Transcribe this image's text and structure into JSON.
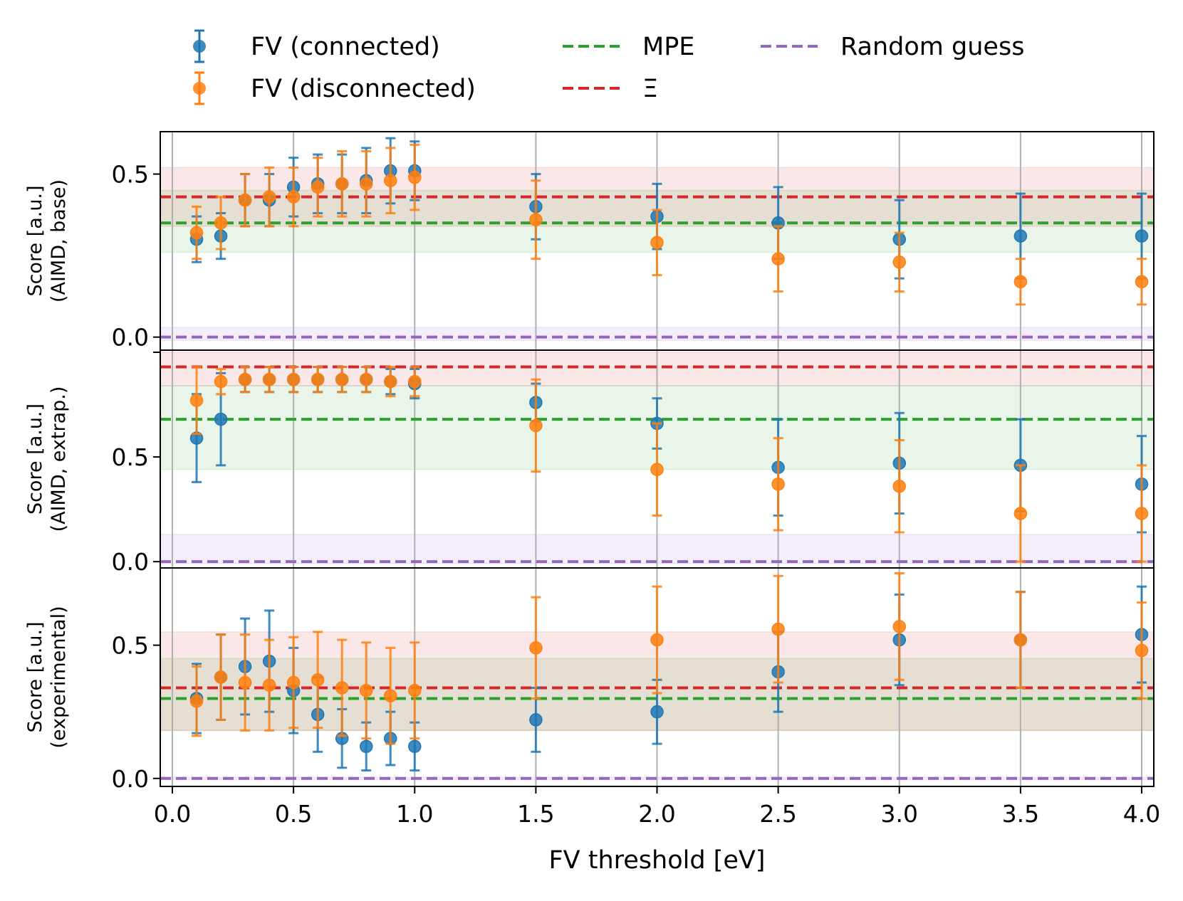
{
  "chart_data": {
    "type": "scatter",
    "xlabel": "FV threshold [eV]",
    "x_ticks": [
      "0.0",
      "0.5",
      "1.0",
      "1.5",
      "2.0",
      "2.5",
      "3.0",
      "3.5",
      "4.0"
    ],
    "xlim": [
      -0.05,
      4.05
    ],
    "x": [
      0.1,
      0.2,
      0.3,
      0.4,
      0.5,
      0.6,
      0.7,
      0.8,
      0.9,
      1.0,
      1.5,
      2.0,
      2.5,
      3.0,
      3.5,
      4.0
    ],
    "grid": "vertical",
    "legend": {
      "placement": "top, outside",
      "entries": [
        {
          "label": "FV (connected)",
          "style": "errorbar-marker",
          "color": "#1f77b4"
        },
        {
          "label": "FV (disconnected)",
          "style": "errorbar-marker",
          "color": "#ff7f0e"
        },
        {
          "label": "MPE",
          "style": "dashed-line",
          "color": "#2ca02c"
        },
        {
          "label": "Ξ",
          "style": "dashed-line",
          "color": "#d62728"
        },
        {
          "label": "Random guess",
          "style": "dashed-line",
          "color": "#9467bd"
        }
      ]
    },
    "panels": [
      {
        "ylabel_line1": "Score [a.u.]",
        "ylabel_line2": "(AIMD, base)",
        "ylim": [
          -0.04,
          0.63
        ],
        "y_ticks": [
          "0.5",
          "0.0"
        ],
        "y_tick_values": [
          0.5,
          0.0
        ],
        "series": [
          {
            "name": "FV (connected)",
            "color": "#1f77b4",
            "y": [
              0.3,
              0.31,
              0.42,
              0.42,
              0.46,
              0.47,
              0.47,
              0.48,
              0.51,
              0.51,
              0.4,
              0.37,
              0.35,
              0.3,
              0.31,
              0.31
            ],
            "err": [
              0.07,
              0.07,
              0.08,
              0.08,
              0.09,
              0.09,
              0.09,
              0.1,
              0.1,
              0.09,
              0.1,
              0.1,
              0.11,
              0.12,
              0.13,
              0.13
            ]
          },
          {
            "name": "FV (disconnected)",
            "color": "#ff7f0e",
            "y": [
              0.32,
              0.35,
              0.42,
              0.43,
              0.43,
              0.46,
              0.47,
              0.47,
              0.48,
              0.49,
              0.36,
              0.29,
              0.24,
              0.23,
              0.17,
              0.17
            ],
            "err": [
              0.08,
              0.08,
              0.08,
              0.09,
              0.09,
              0.09,
              0.1,
              0.1,
              0.1,
              0.1,
              0.12,
              0.1,
              0.1,
              0.09,
              0.07,
              0.07
            ]
          }
        ],
        "references": [
          {
            "name": "MPE",
            "color": "#2ca02c",
            "value": 0.35,
            "band": [
              0.26,
              0.45
            ]
          },
          {
            "name": "Ξ",
            "color": "#d62728",
            "value": 0.43,
            "band": [
              0.34,
              0.52
            ]
          },
          {
            "name": "Random guess",
            "color": "#9467bd",
            "value": 0.0,
            "band": [
              -0.01,
              0.03
            ]
          }
        ]
      },
      {
        "ylabel_line1": "Score [a.u.]",
        "ylabel_line2": "(AIMD, extrap.)",
        "ylim": [
          -0.03,
          1.01
        ],
        "y_ticks": [
          "0.5",
          "0.0"
        ],
        "y_tick_values": [
          0.5,
          0.0
        ],
        "series": [
          {
            "name": "FV (connected)",
            "color": "#1f77b4",
            "y": [
              0.59,
              0.68,
              0.87,
              0.87,
              0.87,
              0.87,
              0.87,
              0.87,
              0.86,
              0.85,
              0.76,
              0.66,
              0.45,
              0.47,
              0.46,
              0.37
            ],
            "err": [
              0.21,
              0.22,
              0.06,
              0.06,
              0.06,
              0.06,
              0.06,
              0.06,
              0.06,
              0.07,
              0.09,
              0.12,
              0.23,
              0.24,
              0.22,
              0.23
            ]
          },
          {
            "name": "FV (disconnected)",
            "color": "#ff7f0e",
            "y": [
              0.77,
              0.86,
              0.87,
              0.87,
              0.87,
              0.87,
              0.87,
              0.87,
              0.86,
              0.86,
              0.65,
              0.44,
              0.37,
              0.36,
              0.23,
              0.23
            ],
            "err": [
              0.16,
              0.06,
              0.06,
              0.06,
              0.06,
              0.06,
              0.06,
              0.06,
              0.07,
              0.07,
              0.22,
              0.22,
              0.22,
              0.22,
              0.23,
              0.23
            ]
          }
        ],
        "references": [
          {
            "name": "MPE",
            "color": "#2ca02c",
            "value": 0.68,
            "band": [
              0.44,
              0.84
            ]
          },
          {
            "name": "Ξ",
            "color": "#d62728",
            "value": 0.93,
            "band": [
              0.84,
              1.0
            ]
          },
          {
            "name": "Random guess",
            "color": "#9467bd",
            "value": 0.0,
            "band": [
              -0.01,
              0.13
            ]
          }
        ]
      },
      {
        "ylabel_line1": "Score [a.u.]",
        "ylabel_line2": "(experimental)",
        "ylim": [
          -0.03,
          0.79
        ],
        "y_ticks": [
          "0.5",
          "0.0"
        ],
        "y_tick_values": [
          0.5,
          0.0
        ],
        "series": [
          {
            "name": "FV (connected)",
            "color": "#1f77b4",
            "y": [
              0.3,
              0.38,
              0.42,
              0.44,
              0.33,
              0.24,
              0.15,
              0.12,
              0.15,
              0.12,
              0.22,
              0.25,
              0.4,
              0.52,
              0.52,
              0.54
            ],
            "err": [
              0.13,
              0.16,
              0.18,
              0.19,
              0.16,
              0.14,
              0.11,
              0.09,
              0.1,
              0.09,
              0.12,
              0.12,
              0.15,
              0.17,
              0.18,
              0.18
            ]
          },
          {
            "name": "FV (disconnected)",
            "color": "#ff7f0e",
            "y": [
              0.29,
              0.38,
              0.36,
              0.35,
              0.36,
              0.37,
              0.34,
              0.33,
              0.31,
              0.33,
              0.49,
              0.52,
              0.56,
              0.57,
              0.52,
              0.48
            ],
            "err": [
              0.13,
              0.16,
              0.18,
              0.17,
              0.17,
              0.18,
              0.18,
              0.18,
              0.18,
              0.18,
              0.19,
              0.2,
              0.2,
              0.2,
              0.18,
              0.18
            ]
          }
        ],
        "references": [
          {
            "name": "MPE",
            "color": "#2ca02c",
            "value": 0.3,
            "band": [
              0.18,
              0.45
            ]
          },
          {
            "name": "Ξ",
            "color": "#d62728",
            "value": 0.34,
            "band": [
              0.18,
              0.55
            ]
          },
          {
            "name": "Random guess",
            "color": "#9467bd",
            "value": 0.0,
            "band": [
              -0.005,
              0.005
            ]
          }
        ]
      }
    ]
  }
}
